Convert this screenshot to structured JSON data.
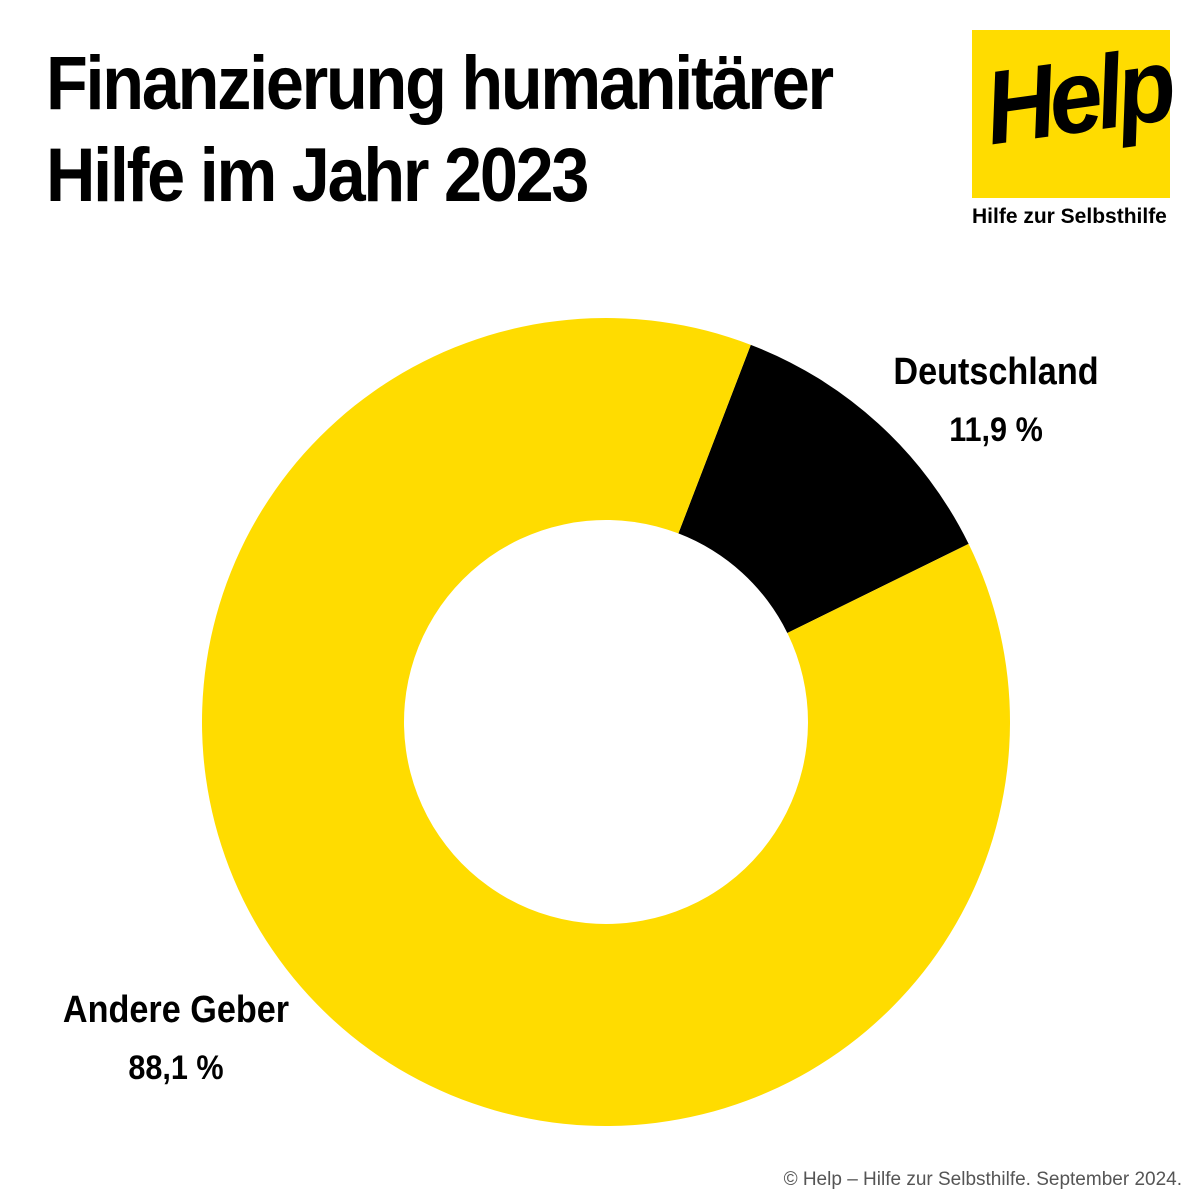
{
  "title_lines": [
    "Finanzierung humanitärer",
    "Hilfe im Jahr 2023"
  ],
  "logo": {
    "text": "Help",
    "tagline": "Hilfe zur Selbsthilfe",
    "color": "#FFDC00"
  },
  "footer": "© Help – Hilfe zur Selbsthilfe. September 2024.",
  "chart_data": {
    "type": "pie",
    "title": "Finanzierung humanitärer Hilfe im Jahr 2023",
    "donut": true,
    "slices": [
      {
        "label": "Deutschland",
        "value": 11.9,
        "value_label": "11,9 %",
        "color": "#000000"
      },
      {
        "label": "Andere Geber",
        "value": 88.1,
        "value_label": "88,1 %",
        "color": "#FFDC00"
      }
    ]
  }
}
